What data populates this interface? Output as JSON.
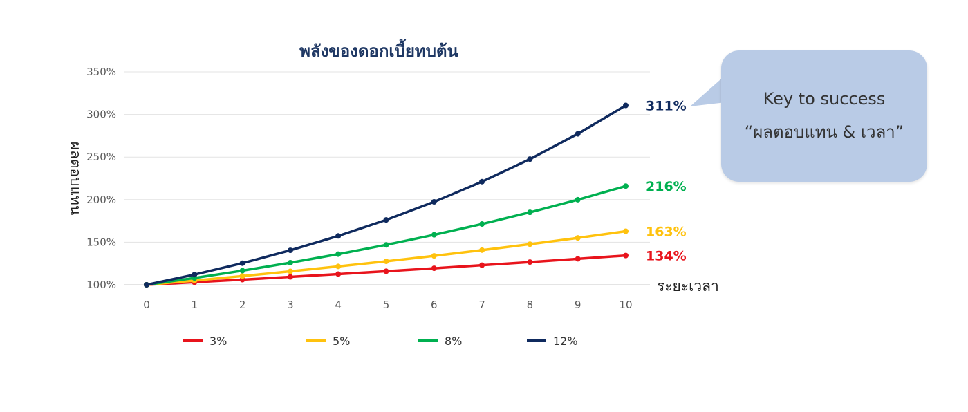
{
  "chart_data": {
    "type": "line",
    "title": "พลังของดอกเบี้ยทบต้น",
    "xlabel": "ระยะเวลา",
    "ylabel": "ผลตอบแทน",
    "x": [
      0,
      1,
      2,
      3,
      4,
      5,
      6,
      7,
      8,
      9,
      10
    ],
    "ylim": [
      100,
      350
    ],
    "yticks": [
      "100%",
      "150%",
      "200%",
      "250%",
      "300%",
      "350%"
    ],
    "grid": true,
    "legend_position": "bottom",
    "series": [
      {
        "name": "3%",
        "color": "#e8141c",
        "values": [
          100,
          103,
          106.1,
          109.3,
          112.6,
          115.9,
          119.4,
          123,
          126.7,
          130.5,
          134.4
        ],
        "end_label": "134%"
      },
      {
        "name": "5%",
        "color": "#ffc20e",
        "values": [
          100,
          105,
          110.3,
          115.8,
          121.6,
          127.6,
          134,
          140.7,
          147.7,
          155.1,
          162.9
        ],
        "end_label": "163%"
      },
      {
        "name": "8%",
        "color": "#00b050",
        "values": [
          100,
          108,
          116.6,
          126,
          136,
          146.9,
          158.7,
          171.4,
          185.1,
          199.9,
          215.9
        ],
        "end_label": "216%"
      },
      {
        "name": "12%",
        "color": "#0f2a5e",
        "values": [
          100,
          112,
          125.4,
          140.5,
          157.4,
          176.2,
          197.4,
          221.1,
          247.6,
          277.3,
          310.6
        ],
        "end_label": "311%"
      }
    ]
  },
  "callout": {
    "line1": "Key to success",
    "line2": "“ผลตอบแทน & เวลา”"
  }
}
